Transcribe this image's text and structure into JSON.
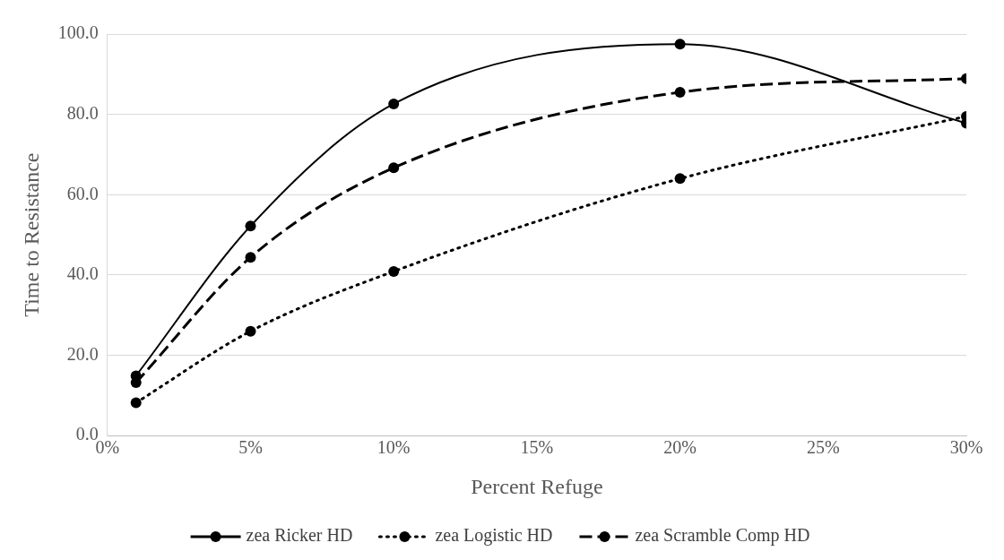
{
  "chart_data": {
    "type": "line",
    "xlabel": "Percent Refuge",
    "ylabel": "Time to Resistance",
    "x": [
      1,
      5,
      10,
      20,
      30
    ],
    "series": [
      {
        "name": "zea Ricker HD",
        "color": "#000000",
        "line_style": "solid",
        "values": [
          14.9,
          52.2,
          82.6,
          97.5,
          77.8
        ]
      },
      {
        "name": "zea Logistic HD",
        "color": "#000000",
        "line_style": "dotted",
        "values": [
          8.2,
          26.0,
          40.9,
          64.0,
          79.5
        ]
      },
      {
        "name": "zea Scramble Comp HD",
        "color": "#000000",
        "line_style": "dashed",
        "values": [
          13.2,
          44.4,
          66.7,
          85.5,
          88.9
        ]
      }
    ],
    "xlim": [
      0,
      30
    ],
    "xticks": [
      {
        "value": 0,
        "label": "0%"
      },
      {
        "value": 5,
        "label": "5%"
      },
      {
        "value": 10,
        "label": "10%"
      },
      {
        "value": 15,
        "label": "15%"
      },
      {
        "value": 20,
        "label": "20%"
      },
      {
        "value": 25,
        "label": "25%"
      },
      {
        "value": 30,
        "label": "30%"
      }
    ],
    "ylim": [
      0,
      100
    ],
    "yticks": [
      {
        "value": 0,
        "label": "0.0"
      },
      {
        "value": 20,
        "label": "20.0"
      },
      {
        "value": 40,
        "label": "40.0"
      },
      {
        "value": 60,
        "label": "60.0"
      },
      {
        "value": 80,
        "label": "80.0"
      },
      {
        "value": 100,
        "label": "100.0"
      }
    ],
    "grid": "y",
    "legend": "bottom",
    "marker": "circle"
  }
}
